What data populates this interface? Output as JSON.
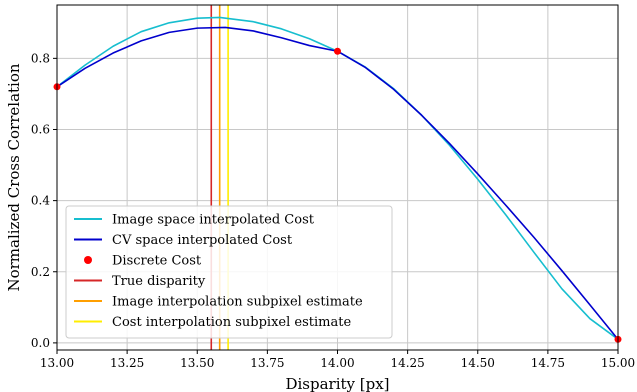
{
  "chart_data": {
    "type": "line",
    "title": "",
    "xlabel": "Disparity [px]",
    "ylabel": "Normalized Cross Correlation",
    "xlim": [
      13.0,
      15.0
    ],
    "ylim": [
      -0.02,
      0.95
    ],
    "xticks": [
      13.0,
      13.25,
      13.5,
      13.75,
      14.0,
      14.25,
      14.5,
      14.75,
      15.0
    ],
    "xtick_labels": [
      "13.00",
      "13.25",
      "13.50",
      "13.75",
      "14.00",
      "14.25",
      "14.50",
      "14.75",
      "15.00"
    ],
    "yticks": [
      0.0,
      0.2,
      0.4,
      0.6,
      0.8
    ],
    "ytick_labels": [
      "0.0",
      "0.2",
      "0.4",
      "0.6",
      "0.8"
    ],
    "grid": true,
    "legend_position": "lower-left",
    "series": [
      {
        "name": "Image space interpolated Cost",
        "kind": "line",
        "color": "#17becf",
        "x": [
          13.0,
          13.1,
          13.2,
          13.3,
          13.4,
          13.5,
          13.58,
          13.7,
          13.8,
          13.9,
          14.0,
          14.1,
          14.2,
          14.3,
          14.4,
          14.5,
          14.6,
          14.7,
          14.8,
          14.9,
          15.0
        ],
        "y": [
          0.72,
          0.781,
          0.834,
          0.875,
          0.9,
          0.913,
          0.915,
          0.903,
          0.883,
          0.855,
          0.82,
          0.775,
          0.715,
          0.64,
          0.555,
          0.46,
          0.36,
          0.255,
          0.152,
          0.068,
          0.01
        ]
      },
      {
        "name": "CV space interpolated Cost",
        "kind": "line",
        "color": "#0000cd",
        "x": [
          13.0,
          13.1,
          13.2,
          13.3,
          13.4,
          13.5,
          13.6,
          13.7,
          13.8,
          13.9,
          14.0,
          14.1,
          14.2,
          14.3,
          14.4,
          14.5,
          14.6,
          14.7,
          14.8,
          14.9,
          15.0
        ],
        "y": [
          0.72,
          0.772,
          0.815,
          0.849,
          0.873,
          0.885,
          0.887,
          0.877,
          0.858,
          0.836,
          0.82,
          0.774,
          0.713,
          0.64,
          0.56,
          0.475,
          0.387,
          0.297,
          0.203,
          0.107,
          0.01
        ]
      },
      {
        "name": "Discrete Cost",
        "kind": "scatter",
        "color": "#ff0000",
        "x": [
          13.0,
          14.0,
          15.0
        ],
        "y": [
          0.72,
          0.82,
          0.01
        ]
      },
      {
        "name": "True disparity",
        "kind": "vline",
        "color": "#d62728",
        "x": 13.55
      },
      {
        "name": "Image interpolation subpixel estimate",
        "kind": "vline",
        "color": "#ff9f00",
        "x": 13.58
      },
      {
        "name": "Cost interpolation subpixel estimate",
        "kind": "vline",
        "color": "#ffee00",
        "x": 13.61
      }
    ]
  }
}
